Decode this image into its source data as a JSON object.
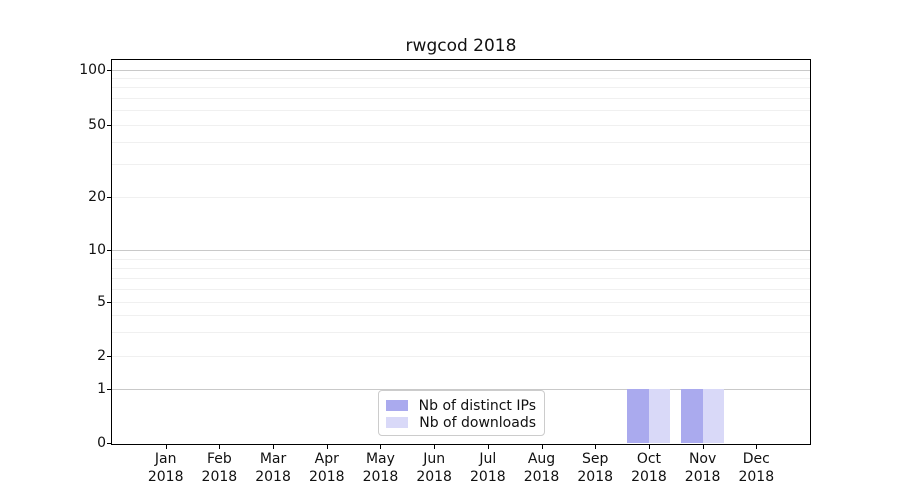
{
  "chart_data": {
    "type": "bar",
    "title": "rwgcod 2018",
    "categories": [
      "Jan 2018",
      "Feb 2018",
      "Mar 2018",
      "Apr 2018",
      "May 2018",
      "Jun 2018",
      "Jul 2018",
      "Aug 2018",
      "Sep 2018",
      "Oct 2018",
      "Nov 2018",
      "Dec 2018"
    ],
    "months": [
      "Jan",
      "Feb",
      "Mar",
      "Apr",
      "May",
      "Jun",
      "Jul",
      "Aug",
      "Sep",
      "Oct",
      "Nov",
      "Dec"
    ],
    "year": "2018",
    "series": [
      {
        "name": "Nb of distinct IPs",
        "color": "#aaaaee",
        "values": [
          0,
          0,
          0,
          0,
          0,
          0,
          0,
          0,
          0,
          1,
          1,
          0
        ]
      },
      {
        "name": "Nb of downloads",
        "color": "#d9d9f8",
        "values": [
          0,
          0,
          0,
          0,
          0,
          0,
          0,
          0,
          0,
          1,
          1,
          0
        ]
      }
    ],
    "yscale": "symlog",
    "yticks": [
      0,
      1,
      2,
      5,
      10,
      20,
      50,
      100
    ],
    "ylim": [
      0,
      115
    ],
    "grid": "horizontal major and minor gridlines",
    "legend_position": "lower center",
    "colors": {
      "major_grid": "#c9c9c9",
      "minor_grid": "#f0f0f0",
      "spine": "#000000",
      "text": "#111111"
    }
  }
}
